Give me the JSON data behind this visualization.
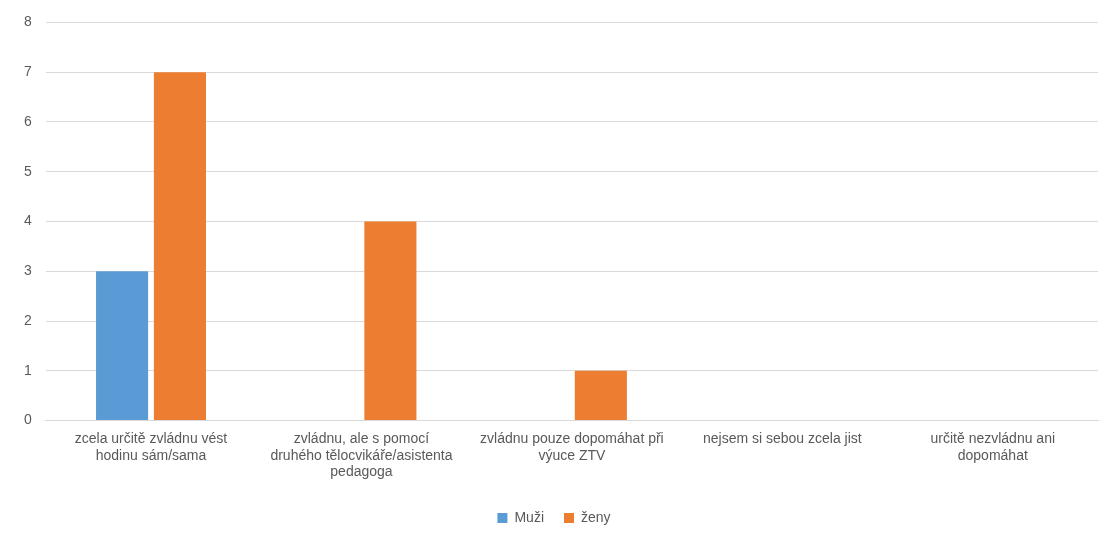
{
  "chart_data": {
    "type": "bar",
    "categories": [
      "zcela určitě zvládnu vést hodinu sám/sama",
      "zvládnu, ale s pomocí druhého tělocvikáře/asistenta pedagoga",
      "zvládnu pouze dopomáhat při výuce ZTV",
      "nejsem si sebou zcela jist",
      "určitě nezvládnu ani dopomáhat"
    ],
    "series": [
      {
        "name": "Muži",
        "color": "#5b9bd5",
        "values": [
          3,
          0,
          0,
          0,
          0
        ]
      },
      {
        "name": "ženy",
        "color": "#ed7d31",
        "values": [
          7,
          4,
          1,
          0,
          0
        ]
      }
    ],
    "ylim": [
      0,
      8
    ],
    "yticks": [
      0,
      1,
      2,
      3,
      4,
      5,
      6,
      7,
      8
    ],
    "grid": "y",
    "legend": "bottom"
  }
}
